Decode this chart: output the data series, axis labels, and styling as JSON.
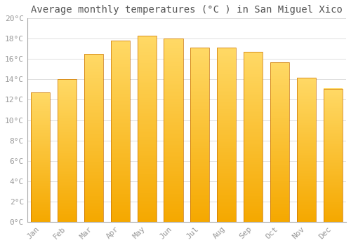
{
  "months": [
    "Jan",
    "Feb",
    "Mar",
    "Apr",
    "May",
    "Jun",
    "Jul",
    "Aug",
    "Sep",
    "Oct",
    "Nov",
    "Dec"
  ],
  "values": [
    12.7,
    14.0,
    16.5,
    17.8,
    18.3,
    18.0,
    17.1,
    17.1,
    16.7,
    15.7,
    14.2,
    13.1
  ],
  "bar_color_bottom": "#F5A800",
  "bar_color_top": "#FFD966",
  "bar_edge_color": "#C87000",
  "title": "Average monthly temperatures (°C ) in San Miguel Xico",
  "ylim": [
    0,
    20
  ],
  "ytick_step": 2,
  "background_color": "#FFFFFF",
  "grid_color": "#DDDDDD",
  "title_fontsize": 10,
  "tick_fontsize": 8,
  "font_family": "monospace",
  "tick_color": "#999999",
  "title_color": "#555555"
}
